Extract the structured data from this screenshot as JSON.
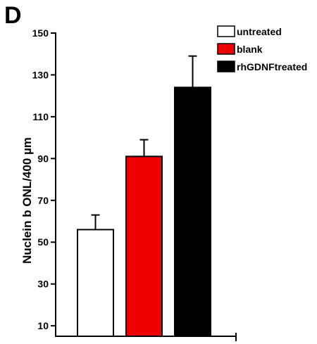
{
  "panel_label": "D",
  "chart_data": {
    "type": "bar",
    "title": "",
    "xlabel": "",
    "ylabel": "Nuclein b ONL/400 µm",
    "ylim": [
      0,
      150
    ],
    "yticks": [
      10,
      30,
      50,
      70,
      90,
      110,
      130,
      150
    ],
    "categories": [
      "untreated",
      "blank",
      "rhGDNFtreated"
    ],
    "values": [
      56,
      91,
      124
    ],
    "errors": [
      7,
      8,
      15
    ],
    "colors": [
      "#ffffff",
      "#ee0000",
      "#000000"
    ],
    "grid": false,
    "legend_position": "top-right"
  }
}
